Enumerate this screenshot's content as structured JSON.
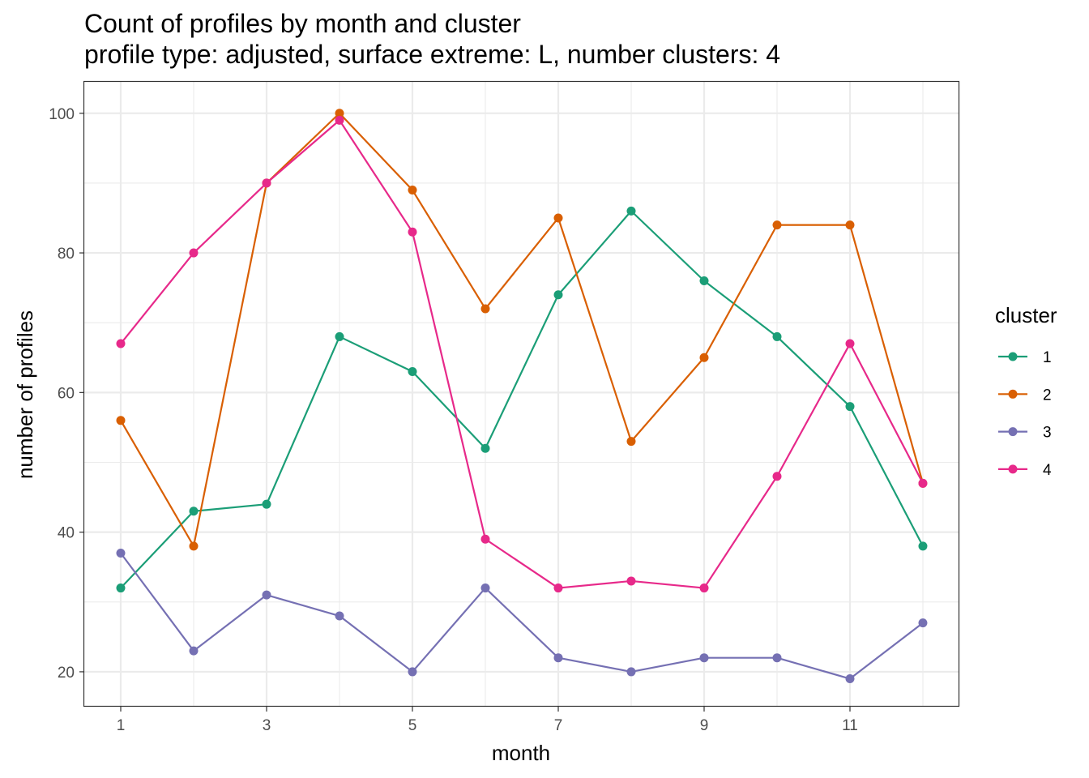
{
  "chart_data": {
    "type": "line",
    "title": "Count of profiles by month and cluster",
    "subtitle": "profile type: adjusted, surface extreme: L, number clusters: 4",
    "xlabel": "month",
    "ylabel": "number of profiles",
    "x": [
      1,
      2,
      3,
      4,
      5,
      6,
      7,
      8,
      9,
      10,
      11,
      12
    ],
    "x_ticks": [
      1,
      3,
      5,
      7,
      9,
      11
    ],
    "y_ticks": [
      20,
      40,
      60,
      80,
      100
    ],
    "xlim": [
      0.5,
      12.5
    ],
    "ylim": [
      15,
      104.5
    ],
    "grid": true,
    "legend": {
      "title": "cluster",
      "position": "right"
    },
    "series": [
      {
        "name": "1",
        "color": "#1b9e77",
        "values": [
          32,
          43,
          44,
          68,
          63,
          52,
          74,
          86,
          76,
          68,
          58,
          38
        ]
      },
      {
        "name": "2",
        "color": "#d95f02",
        "values": [
          56,
          38,
          90,
          100,
          89,
          72,
          85,
          53,
          65,
          84,
          84,
          47
        ]
      },
      {
        "name": "3",
        "color": "#7570b3",
        "values": [
          37,
          23,
          31,
          28,
          20,
          32,
          22,
          20,
          22,
          22,
          19,
          27
        ]
      },
      {
        "name": "4",
        "color": "#e7298a",
        "values": [
          67,
          80,
          90,
          99,
          83,
          39,
          32,
          33,
          32,
          48,
          67,
          47
        ]
      }
    ]
  }
}
